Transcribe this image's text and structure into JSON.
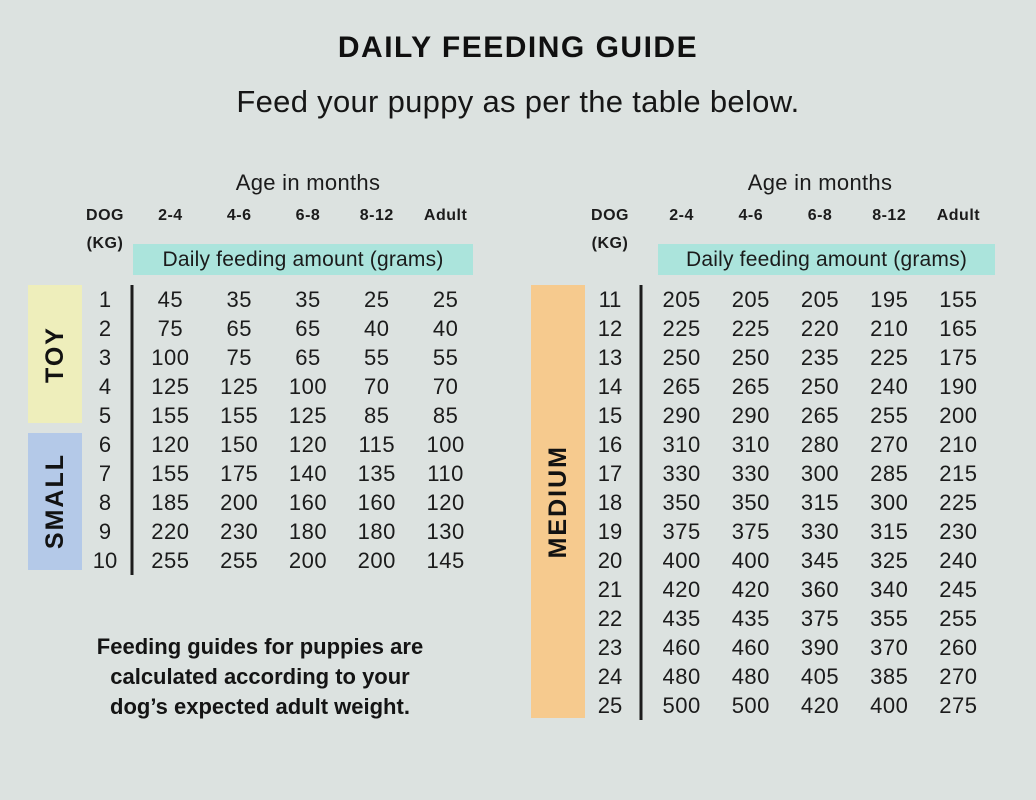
{
  "page": {
    "title": "DAILY FEEDING GUIDE",
    "subtitle": "Feed your puppy as per the table below.",
    "note_lines": [
      "Feeding guides for puppies are",
      "calculated according to your",
      "dog’s expected adult weight."
    ]
  },
  "colors": {
    "background": "#dce2e0",
    "banner_teal": "#abe4dc",
    "toy_yellow": "#eeeebb",
    "small_blue": "#b4c9e8",
    "medium_orange": "#f6ca8e",
    "text": "#1b1b1b",
    "divider_line": "#1c1c1c"
  },
  "chart_data": {
    "type": "table",
    "title": "DAILY FEEDING GUIDE",
    "subtitle": "Feed your puppy as per the table below.",
    "note": "Feeding guides for puppies are calculated according to your dog’s expected adult weight.",
    "tables": [
      {
        "age_header": "Age in months",
        "dog_header": "DOG",
        "kg_header": "(KG)",
        "age_columns": [
          "2-4",
          "4-6",
          "6-8",
          "8-12",
          "Adult"
        ],
        "banner": "Daily feeding amount (grams)",
        "size_groups": [
          {
            "label": "TOY",
            "color": "#eeeebb",
            "kg_range": [
              1,
              5
            ]
          },
          {
            "label": "SMALL",
            "color": "#b4c9e8",
            "kg_range": [
              6,
              10
            ]
          }
        ],
        "rows": [
          {
            "kg": 1,
            "values": [
              45,
              35,
              35,
              25,
              25
            ]
          },
          {
            "kg": 2,
            "values": [
              75,
              65,
              65,
              40,
              40
            ]
          },
          {
            "kg": 3,
            "values": [
              100,
              75,
              65,
              55,
              55
            ]
          },
          {
            "kg": 4,
            "values": [
              125,
              125,
              100,
              70,
              70
            ]
          },
          {
            "kg": 5,
            "values": [
              155,
              155,
              125,
              85,
              85
            ]
          },
          {
            "kg": 6,
            "values": [
              120,
              150,
              120,
              115,
              100
            ]
          },
          {
            "kg": 7,
            "values": [
              155,
              175,
              140,
              135,
              110
            ]
          },
          {
            "kg": 8,
            "values": [
              185,
              200,
              160,
              160,
              120
            ]
          },
          {
            "kg": 9,
            "values": [
              220,
              230,
              180,
              180,
              130
            ]
          },
          {
            "kg": 10,
            "values": [
              255,
              255,
              200,
              200,
              145
            ]
          }
        ]
      },
      {
        "age_header": "Age in months",
        "dog_header": "DOG",
        "kg_header": "(KG)",
        "age_columns": [
          "2-4",
          "4-6",
          "6-8",
          "8-12",
          "Adult"
        ],
        "banner": "Daily feeding amount (grams)",
        "size_groups": [
          {
            "label": "MEDIUM",
            "color": "#f6ca8e",
            "kg_range": [
              11,
              25
            ]
          }
        ],
        "rows": [
          {
            "kg": 11,
            "values": [
              205,
              205,
              205,
              195,
              155
            ]
          },
          {
            "kg": 12,
            "values": [
              225,
              225,
              220,
              210,
              165
            ]
          },
          {
            "kg": 13,
            "values": [
              250,
              250,
              235,
              225,
              175
            ]
          },
          {
            "kg": 14,
            "values": [
              265,
              265,
              250,
              240,
              190
            ]
          },
          {
            "kg": 15,
            "values": [
              290,
              290,
              265,
              255,
              200
            ]
          },
          {
            "kg": 16,
            "values": [
              310,
              310,
              280,
              270,
              210
            ]
          },
          {
            "kg": 17,
            "values": [
              330,
              330,
              300,
              285,
              215
            ]
          },
          {
            "kg": 18,
            "values": [
              350,
              350,
              315,
              300,
              225
            ]
          },
          {
            "kg": 19,
            "values": [
              375,
              375,
              330,
              315,
              230
            ]
          },
          {
            "kg": 20,
            "values": [
              400,
              400,
              345,
              325,
              240
            ]
          },
          {
            "kg": 21,
            "values": [
              420,
              420,
              360,
              340,
              245
            ]
          },
          {
            "kg": 22,
            "values": [
              435,
              435,
              375,
              355,
              255
            ]
          },
          {
            "kg": 23,
            "values": [
              460,
              460,
              390,
              370,
              260
            ]
          },
          {
            "kg": 24,
            "values": [
              480,
              480,
              405,
              385,
              270
            ]
          },
          {
            "kg": 25,
            "values": [
              500,
              500,
              420,
              400,
              275
            ]
          }
        ]
      }
    ]
  }
}
